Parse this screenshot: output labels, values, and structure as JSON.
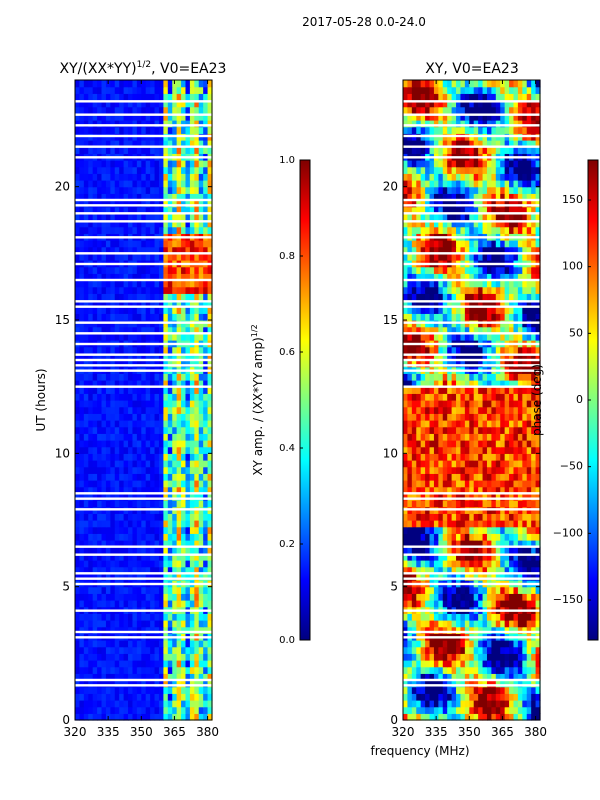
{
  "suptitle": "2017-05-28 0.0-24.0",
  "xlabel_shared": "frequency (MHz)",
  "panels": [
    {
      "title_main": "XY/(XX*YY)",
      "title_sup": "1/2",
      "title_tail": ", V0=EA23",
      "ylabel": "UT (hours)",
      "cbar_label_main": "XY amp. / (XX*YY amp)",
      "cbar_label_sup": "1/2"
    },
    {
      "title_main": "XY, V0=EA23",
      "ylabel": "",
      "cbar_label_main": "phase (deg)"
    }
  ],
  "chart_data": [
    {
      "type": "heatmap",
      "title": "XY/(XX*YY)^1/2, V0=EA23",
      "xlabel": "frequency (MHz)",
      "ylabel": "UT (hours)",
      "xlim": [
        320,
        382
      ],
      "ylim": [
        0,
        24
      ],
      "xticks": [
        320,
        335,
        350,
        365,
        380
      ],
      "yticks": [
        0,
        5,
        10,
        15,
        20
      ],
      "colorbar": {
        "label": "XY amp. / (XX*YY amp)^1/2",
        "range": [
          0.0,
          1.0
        ],
        "ticks": [
          "0.0",
          "0.2",
          "0.4",
          "0.6",
          "0.8",
          "1.0"
        ],
        "colormap": "jet"
      },
      "high_band_mhz": [
        360,
        382
      ],
      "band_level": 0.45,
      "background_level": 0.1,
      "peak_window_hours": [
        16,
        18
      ],
      "peak_level": 0.95
    },
    {
      "type": "heatmap",
      "title": "XY, V0=EA23",
      "xlabel": "frequency (MHz)",
      "ylabel": "",
      "xlim": [
        320,
        382
      ],
      "ylim": [
        0,
        24
      ],
      "xticks": [
        320,
        335,
        350,
        365,
        380
      ],
      "yticks": [
        0,
        5,
        10,
        15,
        20
      ],
      "colorbar": {
        "label": "phase (deg)",
        "range": [
          -180,
          180
        ],
        "ticks": [
          "−150",
          "−100",
          "−50",
          "0",
          "50",
          "100",
          "150"
        ],
        "tick_values": [
          -150,
          -100,
          -50,
          0,
          50,
          100,
          150
        ],
        "colormap": "jet"
      }
    }
  ],
  "flagged_hours": [
    1.3,
    1.5,
    3.1,
    3.3,
    4.1,
    5.1,
    5.3,
    5.5,
    6.2,
    6.5,
    7.9,
    8.3,
    8.5,
    12.5,
    13.1,
    13.3,
    13.5,
    13.7,
    14.1,
    14.5,
    14.9,
    15.5,
    15.7,
    16.5,
    17.1,
    17.5,
    18.1,
    18.7,
    19.0,
    19.3,
    19.5,
    21.1,
    21.5,
    21.9,
    22.3,
    22.7,
    23.2
  ]
}
